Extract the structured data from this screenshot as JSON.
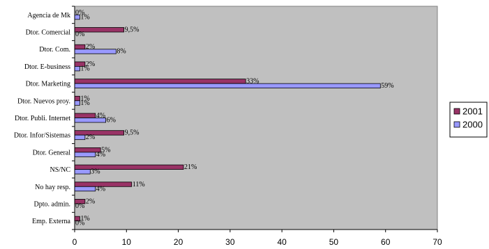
{
  "chart_data": {
    "type": "bar",
    "orientation": "horizontal",
    "categories": [
      "Agencia de Mk",
      "Dtor. Comercial",
      "Dtor. Com.",
      "Dtor. E-business",
      "Dtor. Marketing",
      "Dtor. Nuevos proy.",
      "Dtor. Publi. Internet",
      "Dtor. Infor/Sistemas",
      "Dtor. General",
      "NS/NC",
      "No hay resp.",
      "Dpto. admin.",
      "Emp. Externa"
    ],
    "series": [
      {
        "name": "2001",
        "color": "#993366",
        "values": [
          0,
          9.5,
          2,
          2,
          33,
          1,
          4,
          9.5,
          5,
          21,
          11,
          2,
          1
        ],
        "labels": [
          "0%",
          "9,5%",
          "2%",
          "2%",
          "33%",
          "1%",
          "4%",
          "9,5%",
          "5%",
          "21%",
          "11%",
          "2%",
          "1%"
        ]
      },
      {
        "name": "2000",
        "color": "#9999ff",
        "values": [
          1,
          0,
          8,
          1,
          59,
          1,
          6,
          2,
          4,
          3,
          4,
          0,
          0
        ],
        "labels": [
          "1%",
          "0%",
          "8%",
          "1%",
          "59%",
          "1%",
          "6%",
          "2%",
          "4%",
          "3%",
          "4%",
          "0%",
          "0%"
        ]
      }
    ],
    "xlim": [
      0,
      70
    ],
    "x_ticks": [
      "0",
      "10",
      "20",
      "30",
      "40",
      "50",
      "60",
      "70"
    ],
    "plot_background": "#c0c0c0",
    "grid": false,
    "legend": {
      "position": "right",
      "entries": [
        "2001",
        "2000"
      ]
    },
    "title": "",
    "xlabel": "",
    "ylabel": ""
  }
}
